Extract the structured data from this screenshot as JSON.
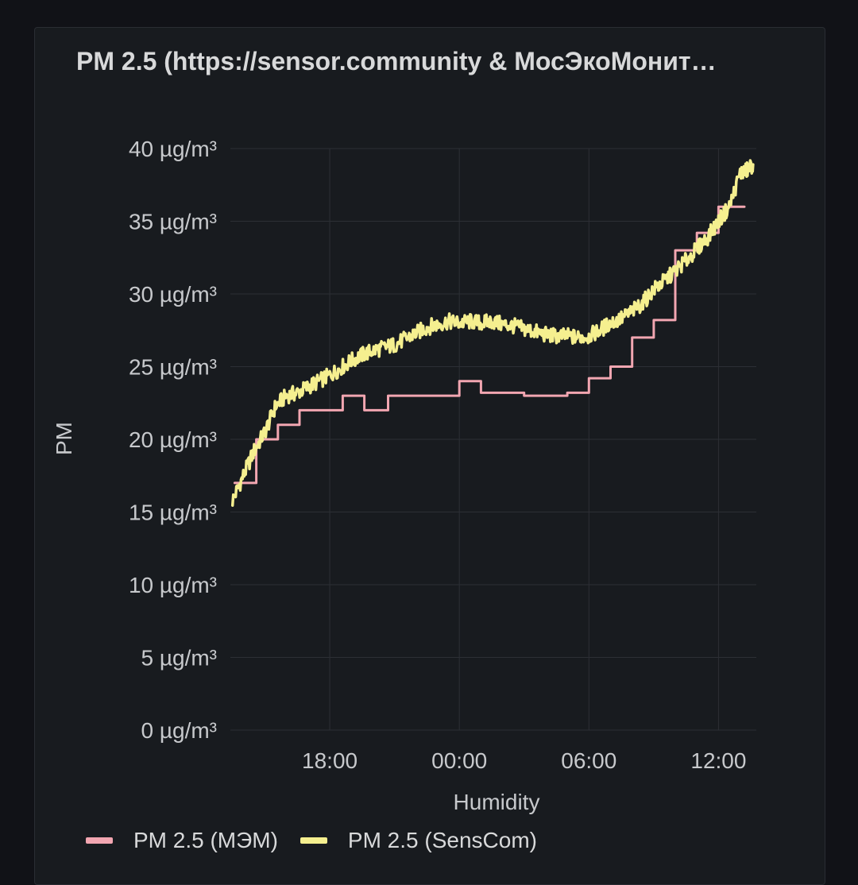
{
  "panel": {
    "title": "PM 2.5 (https://sensor.community & МосЭкоМонит…"
  },
  "colors": {
    "background": "#111217",
    "panel": "#181b1f",
    "grid": "#2c2f35",
    "mem": "#f2a6b1",
    "senscom": "#f5ef8f"
  },
  "legend": [
    {
      "label": "PM 2.5 (МЭМ)",
      "color": "#f2a6b1"
    },
    {
      "label": "PM 2.5 (SensCom)",
      "color": "#f5ef8f"
    }
  ],
  "chart_data": {
    "type": "line",
    "title": "PM 2.5 (https://sensor.community & МосЭкоМонит…",
    "xlabel": "Humidity",
    "ylabel": "PM",
    "x_unit": "hours relative to 00:00",
    "xlim": [
      -10.6,
      13.75
    ],
    "ylim": [
      0,
      40
    ],
    "y_ticks": [
      0,
      5,
      10,
      15,
      20,
      25,
      30,
      35,
      40
    ],
    "y_tick_labels": [
      "0 µg/m³",
      "5 µg/m³",
      "10 µg/m³",
      "15 µg/m³",
      "20 µg/m³",
      "25 µg/m³",
      "30 µg/m³",
      "35 µg/m³",
      "40 µg/m³"
    ],
    "x_ticks": [
      -6,
      0,
      6,
      12
    ],
    "x_tick_labels": [
      "18:00",
      "00:00",
      "06:00",
      "12:00"
    ],
    "grid": true,
    "legend_position": "bottom",
    "series": [
      {
        "name": "PM 2.5 (МЭМ)",
        "style": "step",
        "color": "#f2a6b1",
        "points": [
          [
            -10.4,
            17
          ],
          [
            -9.4,
            17
          ],
          [
            -9.4,
            20
          ],
          [
            -8.4,
            20
          ],
          [
            -8.4,
            21
          ],
          [
            -7.4,
            21
          ],
          [
            -7.4,
            22
          ],
          [
            -5.4,
            22
          ],
          [
            -5.4,
            23
          ],
          [
            -4.4,
            23
          ],
          [
            -4.4,
            22
          ],
          [
            -3.3,
            22
          ],
          [
            -3.3,
            23
          ],
          [
            0,
            23
          ],
          [
            0,
            24
          ],
          [
            1,
            24
          ],
          [
            1,
            23.2
          ],
          [
            3,
            23.2
          ],
          [
            3,
            23
          ],
          [
            5,
            23
          ],
          [
            5,
            23.2
          ],
          [
            6,
            23.2
          ],
          [
            6,
            24.2
          ],
          [
            7,
            24.2
          ],
          [
            7,
            25
          ],
          [
            8,
            25
          ],
          [
            8,
            27
          ],
          [
            9,
            27
          ],
          [
            9,
            28.2
          ],
          [
            10,
            28.2
          ],
          [
            10,
            33
          ],
          [
            11,
            33
          ],
          [
            11,
            34.2
          ],
          [
            12,
            34.2
          ],
          [
            12,
            36
          ],
          [
            13.2,
            36
          ]
        ]
      },
      {
        "name": "PM 2.5 (SensCom)",
        "style": "line",
        "color": "#f5ef8f",
        "points": [
          [
            -10.5,
            15.8
          ],
          [
            -10,
            17.5
          ],
          [
            -9.5,
            19.2
          ],
          [
            -9,
            20.5
          ],
          [
            -8.5,
            22.3
          ],
          [
            -8,
            23
          ],
          [
            -7.5,
            23.2
          ],
          [
            -7,
            23.6
          ],
          [
            -6.5,
            24
          ],
          [
            -6,
            24.4
          ],
          [
            -5.5,
            24.9
          ],
          [
            -5,
            25.4
          ],
          [
            -4.5,
            25.8
          ],
          [
            -4,
            26.1
          ],
          [
            -3.5,
            26.3
          ],
          [
            -3,
            26.5
          ],
          [
            -2.5,
            26.9
          ],
          [
            -2,
            27.3
          ],
          [
            -1.5,
            27.7
          ],
          [
            -1,
            27.9
          ],
          [
            -0.5,
            28.1
          ],
          [
            0,
            28
          ],
          [
            0.5,
            28.1
          ],
          [
            1,
            28
          ],
          [
            1.5,
            28.1
          ],
          [
            2,
            27.9
          ],
          [
            2.5,
            27.8
          ],
          [
            3,
            27.6
          ],
          [
            3.5,
            27.4
          ],
          [
            4,
            27.2
          ],
          [
            4.5,
            27.1
          ],
          [
            5,
            27.1
          ],
          [
            5.5,
            27
          ],
          [
            6,
            27.1
          ],
          [
            6.5,
            27.5
          ],
          [
            7,
            28
          ],
          [
            7.5,
            28.3
          ],
          [
            8,
            28.8
          ],
          [
            8.5,
            29.4
          ],
          [
            9,
            30.3
          ],
          [
            9.5,
            30.9
          ],
          [
            10,
            31.6
          ],
          [
            10.5,
            32.3
          ],
          [
            11,
            33.1
          ],
          [
            11.5,
            33.9
          ],
          [
            12,
            35
          ],
          [
            12.5,
            36
          ],
          [
            13,
            38.3
          ],
          [
            13.3,
            38.5
          ],
          [
            13.6,
            38.9
          ]
        ]
      }
    ]
  }
}
